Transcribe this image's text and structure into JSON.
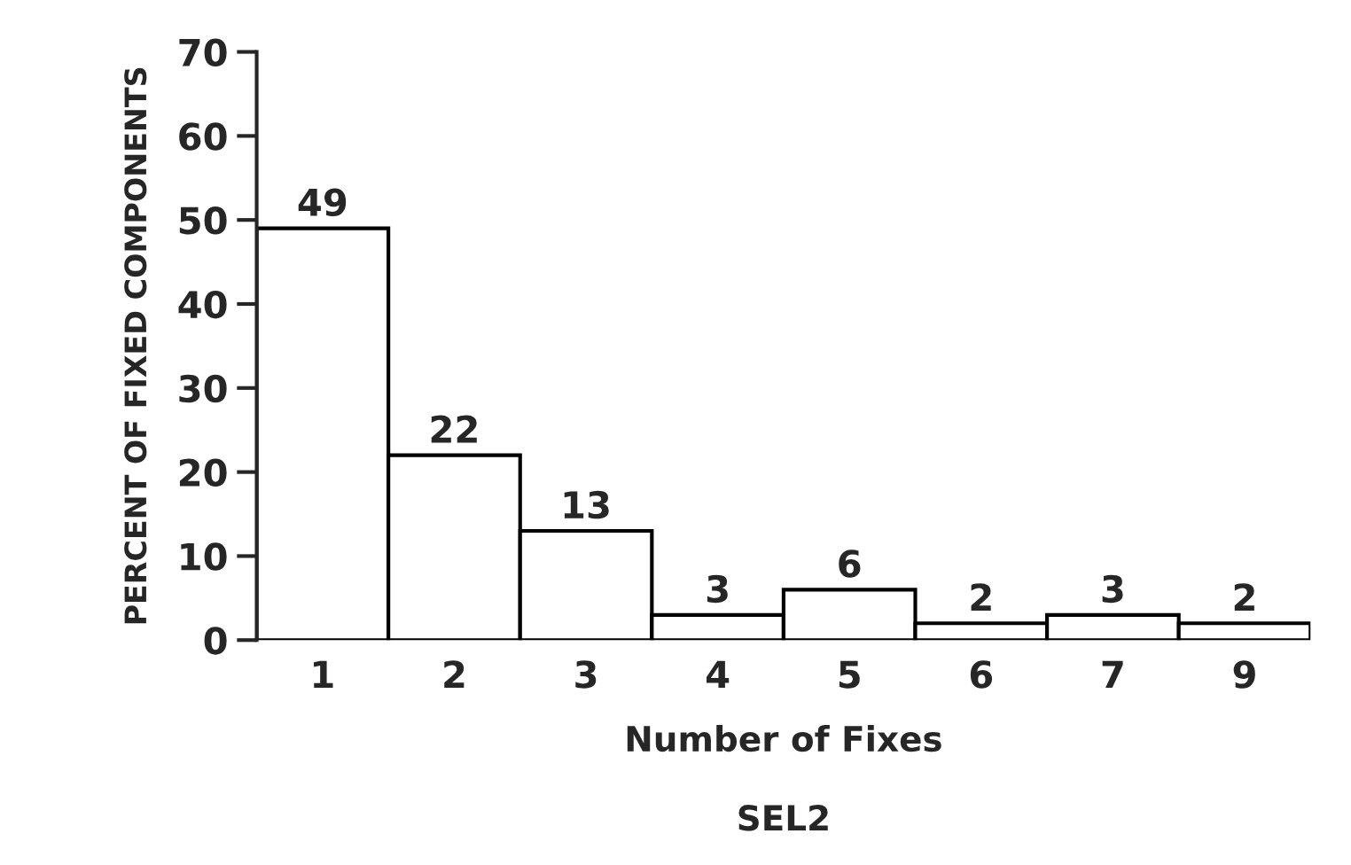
{
  "chart_data": {
    "type": "bar",
    "title": "SEL2",
    "xlabel": "Number of Fixes",
    "ylabel": "PERCENT OF FIXED COMPONENTS",
    "categories": [
      "1",
      "2",
      "3",
      "4",
      "5",
      "6",
      "7",
      "9"
    ],
    "values": [
      49,
      22,
      13,
      3,
      6,
      2,
      3,
      2
    ],
    "color": "#ffffff",
    "ylim": [
      0,
      70
    ],
    "yticks": [
      0,
      10,
      20,
      30,
      40,
      50,
      60,
      70
    ],
    "data_labels": true,
    "grid": false,
    "legend": false
  }
}
